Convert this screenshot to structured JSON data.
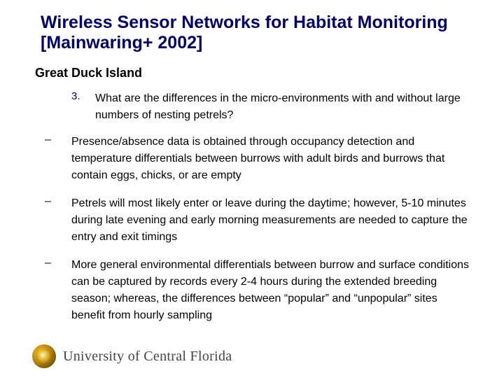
{
  "colors": {
    "title_color": "#000066",
    "text_color": "#000000",
    "marker_color": "#000066",
    "university_color": "#444444",
    "background": "#ffffff"
  },
  "typography": {
    "title_font": "Comic Sans MS",
    "title_size_pt": 25,
    "title_weight": "bold",
    "body_font": "Arial",
    "subheading_size_pt": 18,
    "body_size_pt": 16,
    "numbered_num_size_pt": 15,
    "university_font": "Georgia",
    "university_size_pt": 20
  },
  "title": "Wireless Sensor Networks for Habitat Monitoring\n[Mainwaring+ 2002]",
  "subheading": "Great Duck Island",
  "numbered": {
    "num": "3.",
    "text": "What are the differences in the micro-environments with and without large numbers of nesting petrels?"
  },
  "bullets": [
    {
      "marker": "–",
      "text": "Presence/absence data is obtained through occupancy detection and temperature differentials between burrows with adult birds and burrows that contain eggs, chicks, or are empty"
    },
    {
      "marker": "–",
      "text": "Petrels will most likely enter or leave during the daytime; however, 5-10 minutes during late evening and early morning measurements are needed to capture the entry and exit timings"
    },
    {
      "marker": "–",
      "text": "More general environmental differentials between burrow and surface conditions can be captured by records every 2-4 hours during the extended breeding season; whereas, the differences between “popular” and “unpopular” sites benefit from hourly sampling"
    }
  ],
  "footer": {
    "university": "University of Central Florida",
    "logo_name": "ucf-seal-icon"
  }
}
